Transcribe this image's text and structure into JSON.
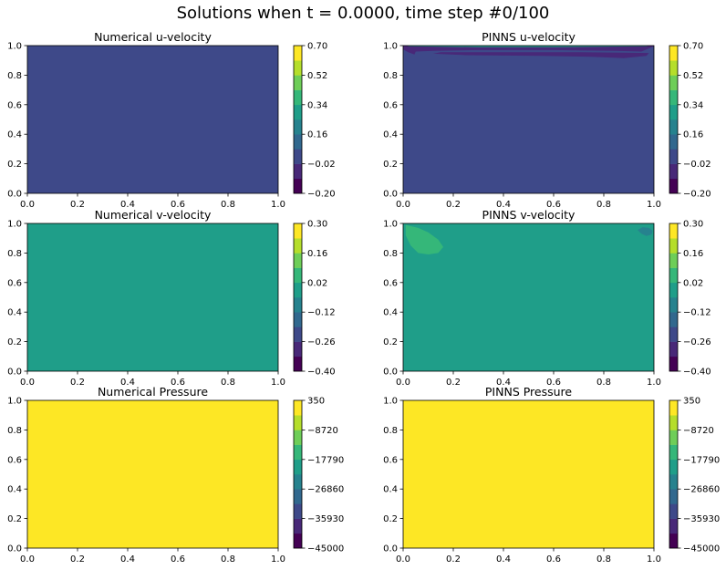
{
  "suptitle": "Solutions when t = 0.0000, time step #0/100",
  "colors": {
    "viridis": [
      "#440154",
      "#482878",
      "#3e4989",
      "#31688e",
      "#26828e",
      "#1f9e89",
      "#35b779",
      "#6ece58",
      "#b5de2b",
      "#fde725"
    ]
  },
  "chart_data": [
    {
      "type": "heatmap",
      "title": "Numerical u-velocity",
      "xlim": [
        0,
        1
      ],
      "ylim": [
        0,
        1
      ],
      "x_ticks": [
        "0.0",
        "0.2",
        "0.4",
        "0.6",
        "0.8",
        "1.0"
      ],
      "y_ticks": [
        "0.0",
        "0.2",
        "0.4",
        "0.6",
        "0.8",
        "1.0"
      ],
      "colorbar": {
        "min": -0.2,
        "max": 0.7,
        "levels": 10,
        "ticks": [
          "−0.20",
          "−0.02",
          "0.16",
          "0.34",
          "0.52",
          "0.70"
        ]
      },
      "fill_value": 0.0
    },
    {
      "type": "heatmap",
      "title": "PINNS u-velocity",
      "xlim": [
        0,
        1
      ],
      "ylim": [
        0,
        1
      ],
      "x_ticks": [
        "0.0",
        "0.2",
        "0.4",
        "0.6",
        "0.8",
        "1.0"
      ],
      "y_ticks": [
        "0.0",
        "0.2",
        "0.4",
        "0.6",
        "0.8",
        "1.0"
      ],
      "colorbar": {
        "min": -0.2,
        "max": 0.7,
        "levels": 10,
        "ticks": [
          "−0.20",
          "−0.02",
          "0.16",
          "0.34",
          "0.52",
          "0.70"
        ]
      },
      "fill_value": 0.0,
      "regions": [
        {
          "value": -0.08,
          "outline": [
            [
              0.0,
              0.975
            ],
            [
              0.02,
              0.955
            ],
            [
              0.045,
              0.94
            ],
            [
              0.05,
              0.96
            ],
            [
              0.12,
              0.965
            ],
            [
              0.3,
              0.97
            ],
            [
              0.6,
              0.97
            ],
            [
              0.85,
              0.965
            ],
            [
              0.95,
              0.96
            ],
            [
              1.0,
              0.995
            ],
            [
              1.0,
              1.0
            ],
            [
              0.0,
              1.0
            ]
          ]
        },
        {
          "value": -0.08,
          "outline": [
            [
              0.12,
              0.945
            ],
            [
              0.25,
              0.935
            ],
            [
              0.55,
              0.93
            ],
            [
              0.75,
              0.925
            ],
            [
              0.88,
              0.915
            ],
            [
              0.97,
              0.93
            ],
            [
              0.98,
              0.95
            ],
            [
              0.7,
              0.955
            ],
            [
              0.4,
              0.955
            ],
            [
              0.15,
              0.955
            ]
          ]
        },
        {
          "value": 0.3,
          "outline": [
            [
              0.02,
              0.995
            ],
            [
              0.3,
              0.99
            ],
            [
              0.6,
              0.99
            ],
            [
              0.97,
              0.995
            ],
            [
              0.98,
              1.0
            ],
            [
              0.02,
              1.0
            ]
          ]
        }
      ]
    },
    {
      "type": "heatmap",
      "title": "Numerical v-velocity",
      "xlim": [
        0,
        1
      ],
      "ylim": [
        0,
        1
      ],
      "x_ticks": [
        "0.0",
        "0.2",
        "0.4",
        "0.6",
        "0.8",
        "1.0"
      ],
      "y_ticks": [
        "0.0",
        "0.2",
        "0.4",
        "0.6",
        "0.8",
        "1.0"
      ],
      "colorbar": {
        "min": -0.4,
        "max": 0.3,
        "levels": 10,
        "ticks": [
          "−0.40",
          "−0.26",
          "−0.12",
          "0.02",
          "0.16",
          "0.30"
        ]
      },
      "fill_value": 0.0
    },
    {
      "type": "heatmap",
      "title": "PINNS v-velocity",
      "xlim": [
        0,
        1
      ],
      "ylim": [
        0,
        1
      ],
      "x_ticks": [
        "0.0",
        "0.2",
        "0.4",
        "0.6",
        "0.8",
        "1.0"
      ],
      "y_ticks": [
        "0.0",
        "0.2",
        "0.4",
        "0.6",
        "0.8",
        "1.0"
      ],
      "colorbar": {
        "min": -0.4,
        "max": 0.3,
        "levels": 10,
        "ticks": [
          "−0.40",
          "−0.26",
          "−0.12",
          "0.02",
          "0.16",
          "0.30"
        ]
      },
      "fill_value": 0.0,
      "regions": [
        {
          "value": 0.07,
          "outline": [
            [
              0.01,
              0.99
            ],
            [
              0.06,
              0.97
            ],
            [
              0.1,
              0.94
            ],
            [
              0.14,
              0.89
            ],
            [
              0.16,
              0.84
            ],
            [
              0.14,
              0.8
            ],
            [
              0.1,
              0.79
            ],
            [
              0.06,
              0.8
            ],
            [
              0.03,
              0.85
            ],
            [
              0.01,
              0.92
            ]
          ]
        },
        {
          "value": -0.06,
          "outline": [
            [
              0.935,
              0.955
            ],
            [
              0.95,
              0.93
            ],
            [
              0.97,
              0.915
            ],
            [
              0.99,
              0.925
            ],
            [
              0.995,
              0.95
            ],
            [
              0.98,
              0.97
            ],
            [
              0.955,
              0.975
            ]
          ]
        }
      ]
    },
    {
      "type": "heatmap",
      "title": "Numerical Pressure",
      "xlim": [
        0,
        1
      ],
      "ylim": [
        0,
        1
      ],
      "x_ticks": [
        "0.0",
        "0.2",
        "0.4",
        "0.6",
        "0.8",
        "1.0"
      ],
      "y_ticks": [
        "0.0",
        "0.2",
        "0.4",
        "0.6",
        "0.8",
        "1.0"
      ],
      "colorbar": {
        "min": -45000,
        "max": 350,
        "levels": 10,
        "ticks": [
          "−45000",
          "−35930",
          "−26860",
          "−17790",
          "−8720",
          "350"
        ]
      },
      "fill_value": 0
    },
    {
      "type": "heatmap",
      "title": "PINNS Pressure",
      "xlim": [
        0,
        1
      ],
      "ylim": [
        0,
        1
      ],
      "x_ticks": [
        "0.0",
        "0.2",
        "0.4",
        "0.6",
        "0.8",
        "1.0"
      ],
      "y_ticks": [
        "0.0",
        "0.2",
        "0.4",
        "0.6",
        "0.8",
        "1.0"
      ],
      "colorbar": {
        "min": -45000,
        "max": 350,
        "levels": 10,
        "ticks": [
          "−45000",
          "−35930",
          "−26860",
          "−17790",
          "−8720",
          "350"
        ]
      },
      "fill_value": 0
    }
  ]
}
